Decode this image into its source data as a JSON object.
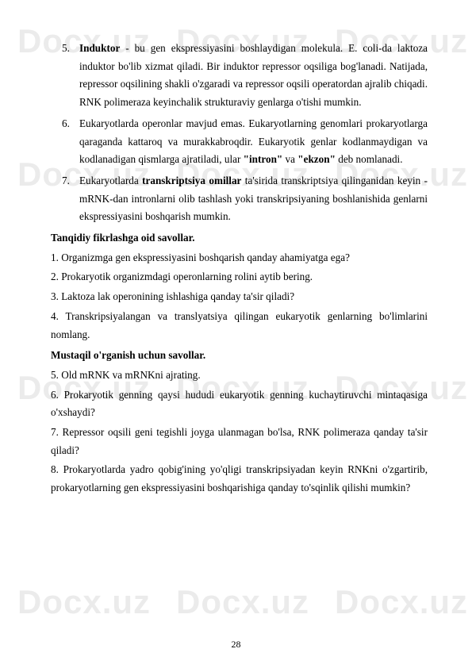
{
  "watermark": "Docx.uz",
  "pageNumber": "28",
  "items": {
    "induktor": {
      "num": "5.",
      "title": "Induktor",
      "body": " - bu gen ekspressiyasini boshlaydigan molekula. E. coli-da laktoza induktor bo'lib xizmat qiladi. Bir induktor repressor oqsiliga bog'lanadi. Natijada, repressor oqsilining shakli o'zgaradi va repressor oqsili operatordan ajralib chiqadi. RNK polimeraza keyinchalik strukturaviy genlarga o'tishi mumkin."
    },
    "eukaryot": {
      "num": "6.",
      "pre": "Eukaryotlarda operonlar mavjud emas. Eukaryotlarning genomlari prokaryotlarga qaraganda kattaroq va murakkabroqdir. Eukaryotik genlar kodlanmaydigan va kodlanadigan qismlarga ajratiladi, ular ",
      "intron": "\"intron\"",
      "mid": " va ",
      "ekzon": "\"ekzon\"",
      "post": " deb nomlanadi."
    },
    "trans": {
      "num": "7.",
      "pre": "Eukaryotlarda ",
      "bold": "transkriptsiya omillar",
      "post": " ta'sirida transkriptsiya qilinganidan keyin - mRNK-dan intronlarni olib tashlash yoki transkripsiyaning boshlanishida genlarni ekspressiyasini boshqarish mumkin."
    }
  },
  "sectionA": {
    "title": "Tanqidiy fikrlashga oid savollar",
    "q1": "1. Organizmga gen ekspressiyasini boshqarish qanday ahamiyatga ega?",
    "q2": "2. Prokaryotik organizmdagi operonlarning rolini aytib bering.",
    "q3": "3. Laktoza lak operonining ishlashiga qanday ta'sir qiladi?",
    "q4": "4. Transkripsiyalangan va translyatsiya qilingan eukaryotik genlarning bo'limlarini nomlang."
  },
  "sectionB": {
    "title": "Mustaqil o'rganish uchun savollar.",
    "q5": "5. Old mRNK va mRNKni ajrating.",
    "q6": "6. Prokaryotik genning qaysi hududi eukaryotik genning kuchaytiruvchi mintaqasiga o'xshaydi?",
    "q7": "7. Repressor oqsili geni tegishli joyga ulanmagan bo'lsa, RNK polimeraza qanday ta'sir qiladi?",
    "q8": "8. Prokaryotlarda yadro qobig'ining yo'qligi transkripsiyadan keyin RNKni o'zgartirib, prokaryotlarning gen ekspressiyasini boshqarishiga qanday to'sqinlik qilishi mumkin?"
  }
}
